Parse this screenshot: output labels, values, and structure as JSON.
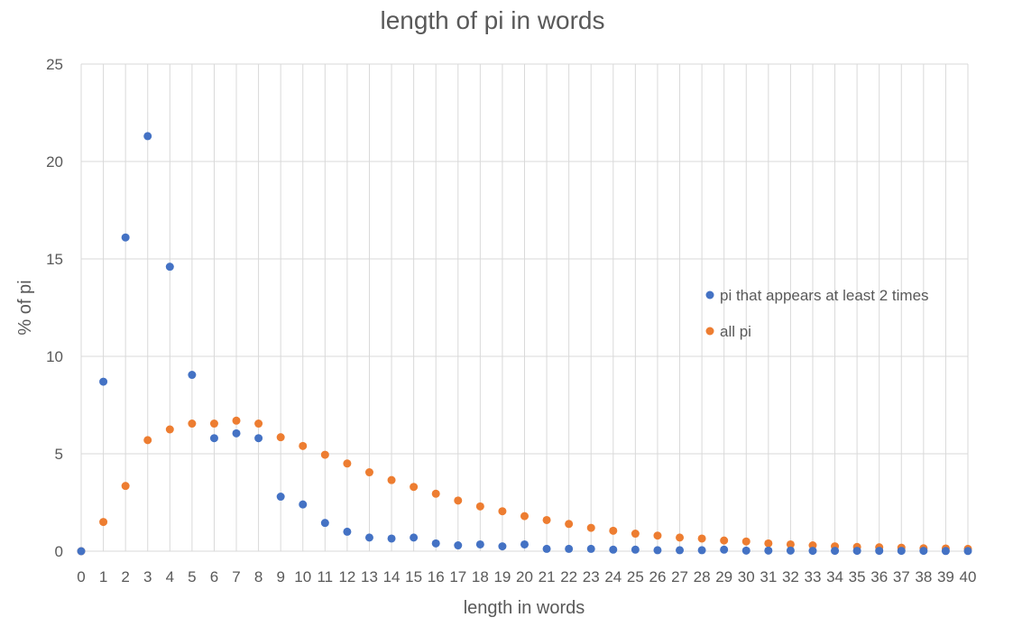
{
  "chart_data": {
    "type": "scatter",
    "title": "length of pi in words",
    "xlabel": "length in words",
    "ylabel": "% of pi",
    "xlim": [
      0,
      40
    ],
    "ylim": [
      0,
      25
    ],
    "x_ticks": [
      "0",
      "1",
      "2",
      "3",
      "4",
      "5",
      "6",
      "7",
      "8",
      "9",
      "10",
      "11",
      "12",
      "13",
      "14",
      "15",
      "16",
      "17",
      "18",
      "19",
      "20",
      "21",
      "22",
      "23",
      "24",
      "25",
      "26",
      "27",
      "28",
      "29",
      "30",
      "31",
      "32",
      "33",
      "34",
      "35",
      "36",
      "37",
      "38",
      "39",
      "40"
    ],
    "y_ticks": [
      "0",
      "5",
      "10",
      "15",
      "20",
      "25"
    ],
    "grid": true,
    "legend_position": "right",
    "x": [
      0,
      1,
      2,
      3,
      4,
      5,
      6,
      7,
      8,
      9,
      10,
      11,
      12,
      13,
      14,
      15,
      16,
      17,
      18,
      19,
      20,
      21,
      22,
      23,
      24,
      25,
      26,
      27,
      28,
      29,
      30,
      31,
      32,
      33,
      34,
      35,
      36,
      37,
      38,
      39,
      40
    ],
    "series": [
      {
        "name": "pi that appears at least 2 times",
        "color": "#4472c4",
        "values": [
          0,
          8.7,
          16.1,
          21.3,
          14.6,
          9.05,
          5.8,
          6.05,
          5.8,
          2.8,
          2.4,
          1.45,
          1.0,
          0.7,
          0.65,
          0.7,
          0.4,
          0.3,
          0.35,
          0.25,
          0.35,
          0.12,
          0.12,
          0.12,
          0.08,
          0.08,
          0.05,
          0.05,
          0.05,
          0.08,
          0.03,
          0.03,
          0.03,
          0.02,
          0.02,
          0.02,
          0.02,
          0.02,
          0.02,
          0.01,
          0.01
        ]
      },
      {
        "name": "all pi",
        "color": "#ed7d31",
        "values": [
          0,
          1.5,
          3.35,
          5.7,
          6.25,
          6.55,
          6.55,
          6.7,
          6.55,
          5.85,
          5.4,
          4.95,
          4.5,
          4.05,
          3.65,
          3.3,
          2.95,
          2.6,
          2.3,
          2.05,
          1.8,
          1.6,
          1.4,
          1.2,
          1.05,
          0.9,
          0.8,
          0.7,
          0.65,
          0.55,
          0.5,
          0.4,
          0.35,
          0.3,
          0.25,
          0.22,
          0.2,
          0.18,
          0.15,
          0.14,
          0.12
        ]
      }
    ]
  }
}
